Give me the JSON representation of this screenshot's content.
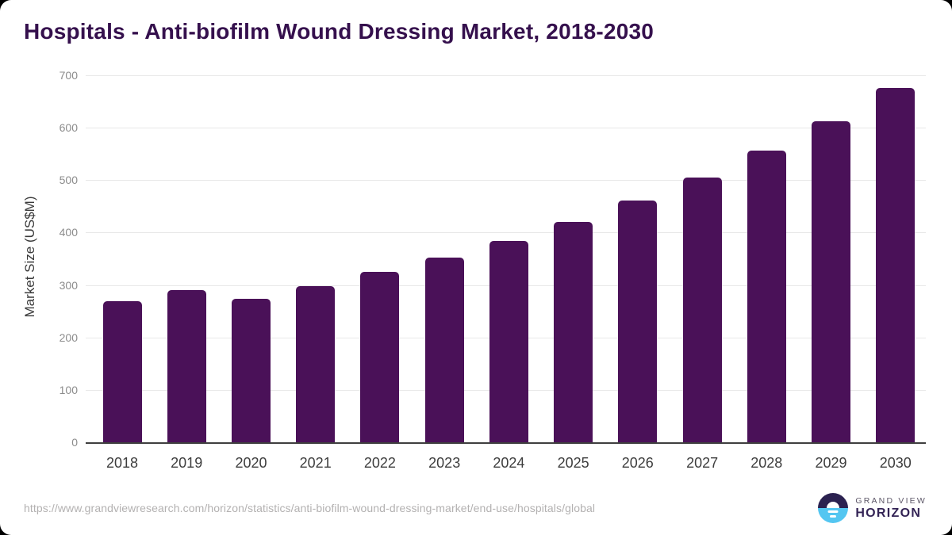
{
  "header": {
    "title": "Hospitals - Anti-biofilm Wound Dressing Market, 2018-2030",
    "title_color": "#35104d"
  },
  "chart_data": {
    "type": "bar",
    "title": "Hospitals - Anti-biofilm Wound Dressing Market, 2018-2030",
    "categories": [
      "2018",
      "2019",
      "2020",
      "2021",
      "2022",
      "2023",
      "2024",
      "2025",
      "2026",
      "2027",
      "2028",
      "2029",
      "2030"
    ],
    "values": [
      269,
      290,
      273,
      298,
      325,
      353,
      384,
      420,
      461,
      505,
      557,
      612,
      676
    ],
    "xlabel": "",
    "ylabel": "Market Size (US$M)",
    "ylim": [
      0,
      700
    ],
    "ytick_step": 100,
    "yticks": [
      0,
      100,
      200,
      300,
      400,
      500,
      600,
      700
    ],
    "grid": true,
    "legend": false,
    "bar_color": "#4a1158",
    "gridline_color": "#e8e8e8",
    "axis_line_color": "#3f3f3f",
    "ytick_label_color": "#8c8c8c",
    "xtick_label_color": "#3d3d3d"
  },
  "footer": {
    "source_url": "https://www.grandviewresearch.com/horizon/statistics/anti-biofilm-wound-dressing-market/end-use/hospitals/global",
    "logo": {
      "line1": "GRAND VIEW",
      "line2": "HORIZON",
      "mark_top_color": "#2b2150",
      "mark_bottom_color": "#54c6f1"
    }
  }
}
